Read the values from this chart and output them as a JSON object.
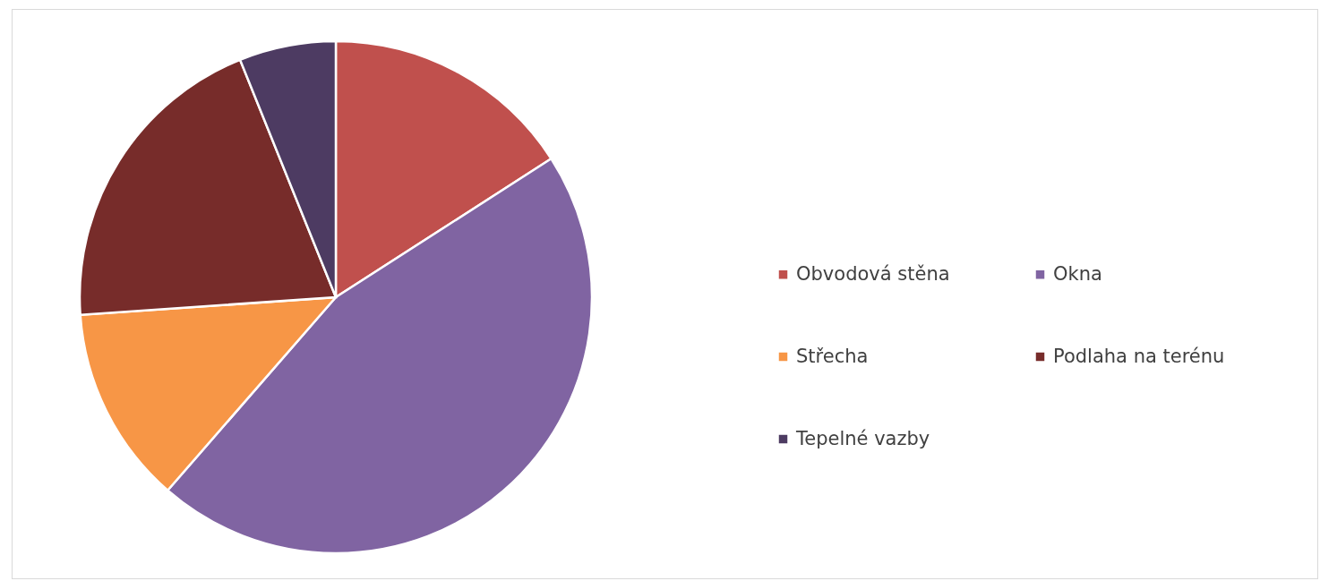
{
  "chart_data": {
    "type": "pie",
    "categories": [
      "Obvodová stěna",
      "Okna",
      "Střecha",
      "Podlaha na terénu",
      "Tepelné vazby"
    ],
    "values": [
      15.9,
      45.5,
      12.5,
      20.0,
      6.1
    ],
    "colors": [
      "#c0504d",
      "#8064a2",
      "#f79646",
      "#772c2a",
      "#4d3b62"
    ],
    "legend": "right"
  }
}
